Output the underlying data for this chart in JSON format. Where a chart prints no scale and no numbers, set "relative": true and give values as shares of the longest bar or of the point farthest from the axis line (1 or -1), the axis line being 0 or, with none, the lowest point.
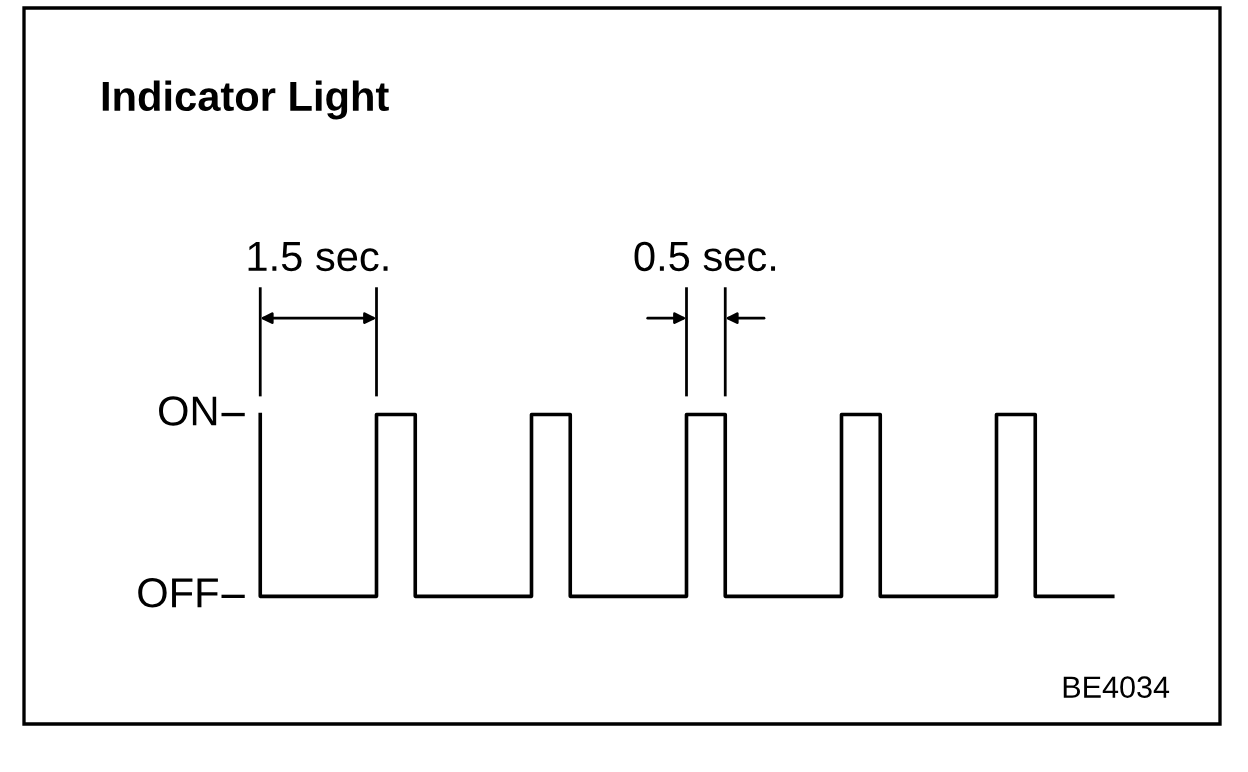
{
  "chart_data": {
    "type": "step",
    "title": "Indicator Light",
    "categories": [
      null,
      null,
      null,
      null,
      null,
      null,
      null,
      null,
      null,
      null,
      null,
      null,
      null,
      null,
      null,
      null,
      null,
      null,
      null,
      null,
      null,
      null,
      null
    ],
    "values": [
      1,
      0,
      0,
      0,
      1,
      0,
      0,
      0,
      1,
      0,
      0,
      0,
      1,
      0,
      0,
      0,
      1,
      0,
      0,
      0,
      1,
      0,
      0
    ],
    "color": "#000000",
    "line_style": "solid",
    "relative": true,
    "annotations": [
      "ON",
      "OFF",
      "1.5 sec.",
      "0.5 sec.",
      "BE4034"
    ]
  }
}
